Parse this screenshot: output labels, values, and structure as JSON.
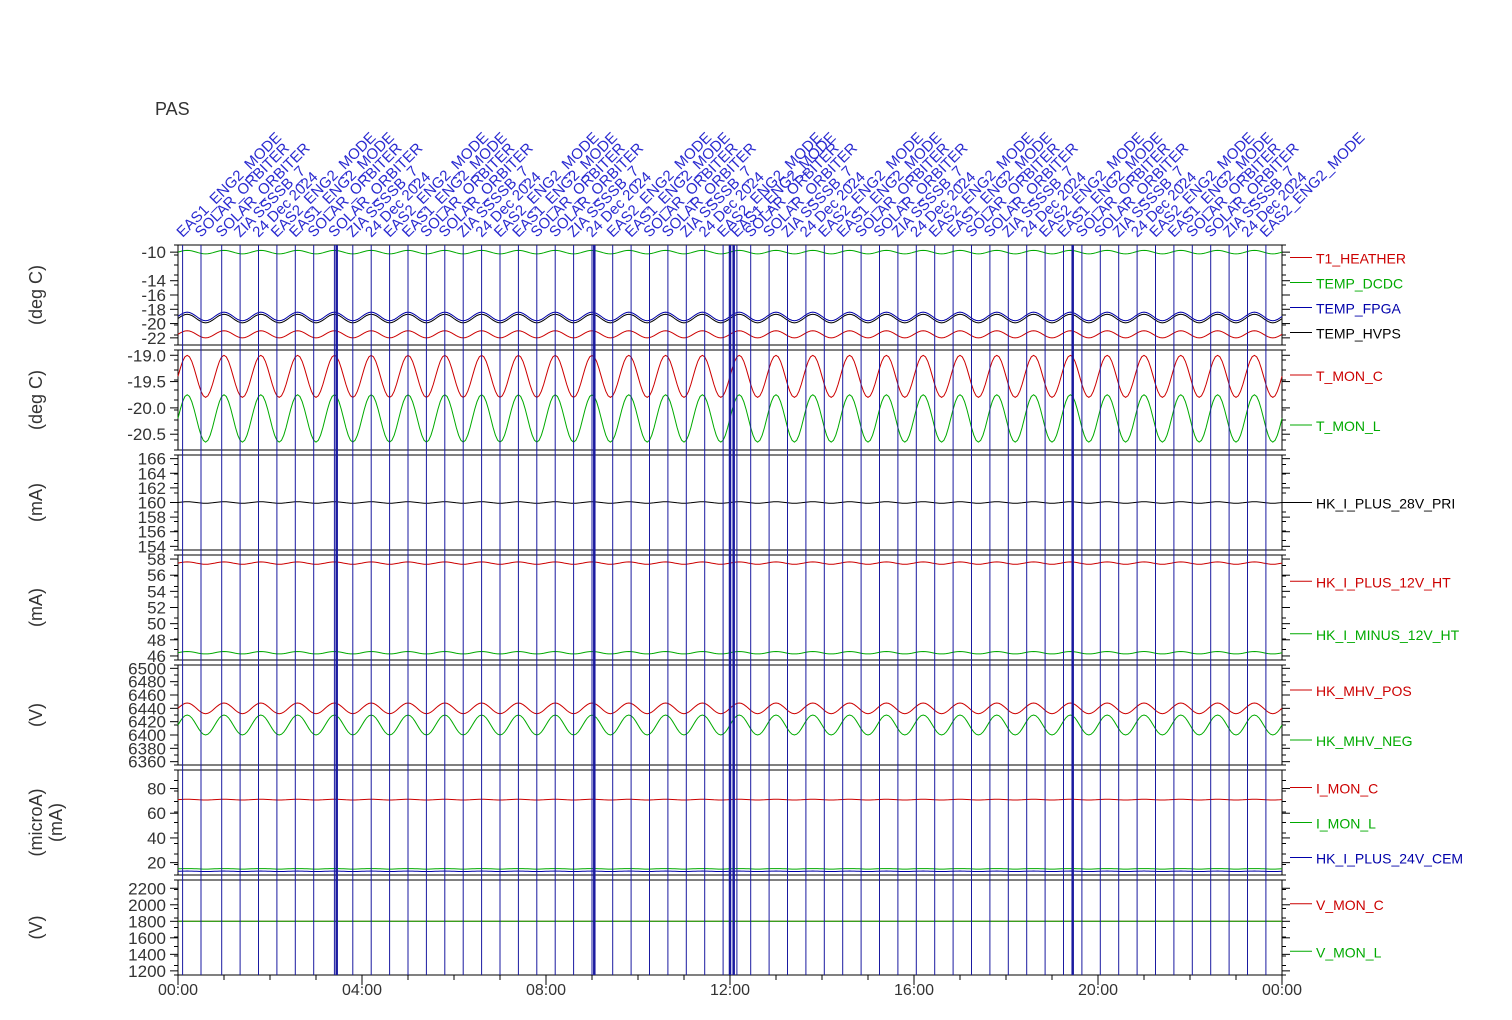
{
  "title": "PAS",
  "colors": {
    "red": "#cc0000",
    "green": "#00aa00",
    "blue": "#0000aa",
    "black": "#000000",
    "event": "#1a1aa0",
    "frame": "#000000"
  },
  "events": {
    "thin_times_hours": [
      0.1,
      0.5,
      0.95,
      1.35,
      1.75,
      2.15,
      2.55,
      2.95,
      3.4,
      3.8,
      4.2,
      4.6,
      5.0,
      5.4,
      5.8,
      6.2,
      6.6,
      7.0,
      7.4,
      7.8,
      8.2,
      8.6,
      9.0,
      9.45,
      9.85,
      10.25,
      10.65,
      11.05,
      11.45,
      11.85,
      12.15,
      12.45,
      12.85,
      13.25,
      13.65,
      14.05,
      14.45,
      14.85,
      15.25,
      15.65,
      16.05,
      16.45,
      16.85,
      17.25,
      17.65,
      18.05,
      18.45,
      18.85,
      19.25,
      19.65,
      20.05,
      20.45,
      20.85,
      21.25,
      21.65,
      22.05,
      22.45,
      22.85,
      23.25,
      23.65
    ],
    "thick_times_hours": [
      3.45,
      9.05,
      12.0,
      12.08,
      19.45
    ],
    "labels_visible": [
      "EAS1_ENG2_MODE",
      "SOLAR_ORBITER",
      "SOLAR_ORBITER",
      "ZIA SSSSB_7",
      "24 Dec 2024",
      "EAS2_ENG2_MODE"
    ]
  },
  "chart_data": [
    {
      "type": "line",
      "ylabel": "(deg C)",
      "yticks": [
        "-10",
        "-14",
        "-16",
        "-18",
        "-20",
        "-22"
      ],
      "ylim": [
        -23,
        -9
      ],
      "series": [
        {
          "name": "T1_HEATHER",
          "color": "#cc0000",
          "level": -21.5,
          "amplitude": 0.5,
          "period_h": 0.8
        },
        {
          "name": "TEMP_DCDC",
          "color": "#00aa00",
          "level": -10.0,
          "amplitude": 0.25,
          "period_h": 0.8
        },
        {
          "name": "TEMP_FPGA",
          "color": "#0000aa",
          "level": -19.0,
          "amplitude": 0.6,
          "period_h": 0.8
        },
        {
          "name": "TEMP_HVPS",
          "color": "#000000",
          "level": -19.3,
          "amplitude": 0.6,
          "period_h": 0.8
        }
      ]
    },
    {
      "type": "line",
      "ylabel": "(deg C)",
      "yticks": [
        "-19.0",
        "-19.5",
        "-20.0",
        "-20.5"
      ],
      "ylim": [
        -20.8,
        -18.9
      ],
      "series": [
        {
          "name": "T_MON_C",
          "color": "#cc0000",
          "level": -19.4,
          "amplitude": 0.4,
          "period_h": 0.8
        },
        {
          "name": "T_MON_L",
          "color": "#00aa00",
          "level": -20.2,
          "amplitude": 0.45,
          "period_h": 0.8
        }
      ]
    },
    {
      "type": "line",
      "ylabel": "(mA)",
      "yticks": [
        "166",
        "164",
        "162",
        "160",
        "158",
        "156",
        "154"
      ],
      "ylim": [
        153.5,
        166.5
      ],
      "series": [
        {
          "name": "HK_I_PLUS_28V_PRI",
          "color": "#000000",
          "level": 160,
          "amplitude": 0.1,
          "period_h": 0.8
        }
      ]
    },
    {
      "type": "line",
      "ylabel": "(mA)",
      "yticks": [
        "58",
        "56",
        "54",
        "52",
        "50",
        "48",
        "46"
      ],
      "ylim": [
        45.5,
        58.5
      ],
      "series": [
        {
          "name": "HK_I_PLUS_12V_HT",
          "color": "#cc0000",
          "level": 57.5,
          "amplitude": 0.15,
          "period_h": 0.8
        },
        {
          "name": "HK_I_MINUS_12V_HT",
          "color": "#00aa00",
          "level": 46.4,
          "amplitude": 0.15,
          "period_h": 0.8
        }
      ]
    },
    {
      "type": "line",
      "ylabel": "(V)",
      "yticks": [
        "6500",
        "6480",
        "6460",
        "6440",
        "6420",
        "6400",
        "6380",
        "6360"
      ],
      "ylim": [
        6355,
        6505
      ],
      "series": [
        {
          "name": "HK_MHV_POS",
          "color": "#cc0000",
          "level": 6440,
          "amplitude": 8,
          "period_h": 0.8
        },
        {
          "name": "HK_MHV_NEG",
          "color": "#00aa00",
          "level": 6415,
          "amplitude": 15,
          "period_h": 0.8
        }
      ]
    },
    {
      "type": "line",
      "ylabel": "(microA)",
      "ylabel2": "(mA)",
      "yticks": [
        "80",
        "60",
        "40",
        "20"
      ],
      "ylim": [
        10,
        95
      ],
      "series": [
        {
          "name": "I_MON_C",
          "color": "#cc0000",
          "level": 71,
          "amplitude": 0.3,
          "period_h": 0.8
        },
        {
          "name": "I_MON_L",
          "color": "#00aa00",
          "level": 15,
          "amplitude": 0.2,
          "period_h": 0.8
        },
        {
          "name": "HK_I_PLUS_24V_CEM",
          "color": "#0000aa",
          "level": 13,
          "amplitude": 0.2,
          "period_h": 0.8
        }
      ]
    },
    {
      "type": "line",
      "ylabel": "(V)",
      "yticks": [
        "2200",
        "2000",
        "1800",
        "1600",
        "1400",
        "1200"
      ],
      "ylim": [
        1150,
        2300
      ],
      "series": [
        {
          "name": "V_MON_C",
          "color": "#cc0000",
          "level": 1800,
          "amplitude": 0,
          "period_h": 1
        },
        {
          "name": "V_MON_L",
          "color": "#00aa00",
          "level": 1800,
          "amplitude": 0,
          "period_h": 1
        }
      ]
    }
  ],
  "xaxis": {
    "tick_labels": [
      "00:00",
      "04:00",
      "08:00",
      "12:00",
      "16:00",
      "20:00",
      "00:00"
    ],
    "range_hours": [
      0,
      24
    ]
  }
}
